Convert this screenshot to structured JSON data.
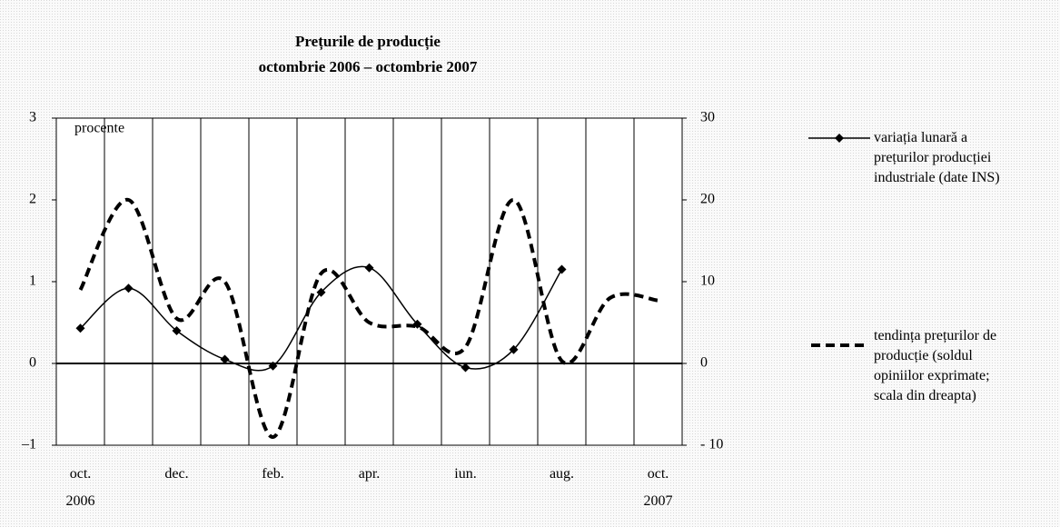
{
  "chart_data": {
    "type": "line",
    "title": "Prețurile de producție",
    "subtitle": "octombrie 2006 – octombrie 2007",
    "y_label": "procente",
    "categories": [
      "oct.\n2006",
      null,
      "dec.",
      null,
      "feb.",
      null,
      "apr.",
      null,
      "iun.",
      null,
      "aug.",
      null,
      "oct.\n2007"
    ],
    "series": [
      {
        "name": "variația lunară a prețurilor producției industriale (date INS)",
        "color": "#000000",
        "style": "solid",
        "marker": "diamond",
        "values": [
          0.43,
          0.92,
          0.4,
          0.05,
          -0.03,
          0.87,
          1.17,
          0.48,
          -0.05,
          0.17,
          1.15,
          null,
          null
        ]
      },
      {
        "name": "tendința prețurilor de producție (soldul opiniilor exprimate; scala din dreapta)",
        "color": "#000000",
        "style": "dashed",
        "axis": "y2",
        "values": [
          9,
          20,
          5.5,
          10,
          -9,
          11,
          5,
          4.5,
          2,
          20,
          0.3,
          8,
          7.7
        ]
      }
    ],
    "ylim": [
      -1,
      3
    ],
    "yticks": [
      {
        "value": -1,
        "label": "–1"
      },
      0,
      1,
      2,
      3
    ],
    "y2lim": [
      -10,
      30
    ],
    "y2ticks": [
      {
        "value": -10,
        "label": "- 10"
      },
      0,
      10,
      20,
      30
    ]
  }
}
